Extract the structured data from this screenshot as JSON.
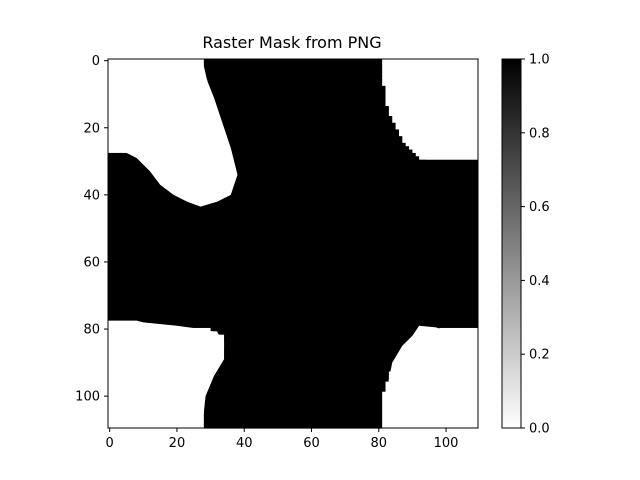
{
  "chart_data": {
    "type": "heatmap",
    "title": "Raster Mask from PNG",
    "xlabel": "",
    "ylabel": "",
    "shape": [
      110,
      110
    ],
    "xlim": [
      -0.5,
      109.5
    ],
    "ylim": [
      109.5,
      -0.5
    ],
    "x_ticks": [
      0,
      20,
      40,
      60,
      80,
      100
    ],
    "y_ticks": [
      0,
      20,
      40,
      60,
      80,
      100
    ],
    "colormap": "gray_r",
    "value_range": [
      0.0,
      1.0
    ],
    "background_value": 0.0,
    "mask_value": 1.0,
    "colorbar": {
      "ticks": [
        "0.0",
        "0.2",
        "0.4",
        "0.6",
        "0.8",
        "1.0"
      ],
      "tick_values": [
        0.0,
        0.2,
        0.4,
        0.6,
        0.8,
        1.0
      ],
      "low_color": "#ffffff",
      "high_color": "#000000"
    },
    "mask_rows_x_start_end": [
      [
        28,
        81
      ],
      [
        28,
        81
      ],
      [
        28,
        81
      ],
      [
        28,
        81
      ],
      [
        28,
        81
      ],
      [
        28,
        81
      ],
      [
        29,
        81
      ],
      [
        29,
        81
      ],
      [
        29,
        82
      ],
      [
        29,
        82
      ],
      [
        30,
        82
      ],
      [
        30,
        82
      ],
      [
        31,
        82
      ],
      [
        31,
        82
      ],
      [
        31,
        83
      ],
      [
        32,
        83
      ],
      [
        32,
        83
      ],
      [
        32,
        84
      ],
      [
        33,
        84
      ],
      [
        33,
        85
      ],
      [
        33,
        85
      ],
      [
        34,
        86
      ],
      [
        34,
        86
      ],
      [
        34,
        87
      ],
      [
        35,
        87
      ],
      [
        35,
        88
      ],
      [
        35,
        89
      ],
      [
        36,
        90
      ],
      [
        -0.5,
        91
      ],
      [
        -0.5,
        92
      ],
      [
        -0.5,
        109.5
      ],
      [
        -0.5,
        109.5
      ],
      [
        -0.5,
        109.5
      ],
      [
        -0.5,
        109.5
      ],
      [
        -0.5,
        109.5
      ],
      [
        -0.5,
        109.5
      ],
      [
        -0.5,
        109.5
      ],
      [
        -0.5,
        109.5
      ],
      [
        -0.5,
        109.5
      ],
      [
        -0.5,
        109.5
      ],
      [
        -0.5,
        109.5
      ],
      [
        -0.5,
        109.5
      ],
      [
        -0.5,
        109.5
      ],
      [
        -0.5,
        109.5
      ],
      [
        -0.5,
        109.5
      ],
      [
        -0.5,
        109.5
      ],
      [
        -0.5,
        109.5
      ],
      [
        -0.5,
        109.5
      ],
      [
        -0.5,
        109.5
      ],
      [
        -0.5,
        109.5
      ],
      [
        -0.5,
        109.5
      ],
      [
        -0.5,
        109.5
      ],
      [
        -0.5,
        109.5
      ],
      [
        -0.5,
        109.5
      ],
      [
        -0.5,
        109.5
      ],
      [
        -0.5,
        109.5
      ],
      [
        -0.5,
        109.5
      ],
      [
        -0.5,
        109.5
      ],
      [
        -0.5,
        109.5
      ],
      [
        -0.5,
        109.5
      ],
      [
        -0.5,
        109.5
      ],
      [
        -0.5,
        109.5
      ],
      [
        -0.5,
        109.5
      ],
      [
        -0.5,
        109.5
      ],
      [
        -0.5,
        109.5
      ],
      [
        -0.5,
        109.5
      ],
      [
        -0.5,
        109.5
      ],
      [
        -0.5,
        109.5
      ],
      [
        -0.5,
        109.5
      ],
      [
        -0.5,
        109.5
      ],
      [
        -0.5,
        109.5
      ],
      [
        -0.5,
        109.5
      ],
      [
        -0.5,
        109.5
      ],
      [
        -0.5,
        109.5
      ],
      [
        -0.5,
        109.5
      ],
      [
        -0.5,
        109.5
      ],
      [
        -0.5,
        109.5
      ],
      [
        -0.5,
        109.5
      ],
      [
        -0.5,
        109.5
      ],
      [
        -0.5,
        109.5
      ],
      [
        30,
        98
      ],
      [
        32,
        96
      ],
      [
        34,
        94
      ],
      [
        34,
        92
      ],
      [
        34,
        90
      ],
      [
        34,
        89
      ],
      [
        33,
        88
      ],
      [
        33,
        87
      ],
      [
        33,
        86
      ],
      [
        32,
        85
      ],
      [
        32,
        85
      ],
      [
        31,
        84
      ],
      [
        31,
        84
      ],
      [
        30,
        83
      ],
      [
        30,
        83
      ],
      [
        29,
        83
      ],
      [
        29,
        82
      ],
      [
        29,
        82
      ],
      [
        28,
        82
      ],
      [
        28,
        81
      ],
      [
        28,
        81
      ],
      [
        28,
        81
      ],
      [
        28,
        81
      ],
      [
        28,
        81
      ],
      [
        28,
        81
      ],
      [
        28,
        81
      ],
      [
        28,
        81
      ],
      [
        28,
        81
      ],
      [
        28,
        81
      ],
      [
        28,
        81
      ]
    ],
    "white_patches": [
      {
        "region": "top-left",
        "points": [
          [
            -0.5,
            26.5
          ],
          [
            3,
            26.5
          ],
          [
            8,
            29
          ],
          [
            12,
            33
          ],
          [
            15,
            37
          ],
          [
            19,
            40
          ],
          [
            23,
            42
          ],
          [
            27,
            43.5
          ],
          [
            32,
            42
          ],
          [
            36,
            40
          ],
          [
            38,
            34
          ],
          [
            36,
            26
          ],
          [
            33,
            17
          ],
          [
            31,
            11
          ],
          [
            29,
            6
          ],
          [
            27.5,
            -0.5
          ],
          [
            -0.5,
            -0.5
          ]
        ]
      },
      {
        "region": "top-right",
        "points": [
          [
            81.5,
            -0.5
          ],
          [
            82,
            6
          ],
          [
            83.5,
            12
          ],
          [
            86,
            17
          ],
          [
            89,
            21
          ],
          [
            92,
            25
          ],
          [
            94,
            29.5
          ],
          [
            109.5,
            29.5
          ],
          [
            109.5,
            -0.5
          ]
        ]
      },
      {
        "region": "bottom-left",
        "points": [
          [
            -0.5,
            77.5
          ],
          [
            8,
            77.5
          ],
          [
            10,
            78
          ],
          [
            20,
            79
          ],
          [
            27,
            80
          ],
          [
            32,
            81
          ],
          [
            34,
            84
          ],
          [
            34,
            89
          ],
          [
            31,
            94
          ],
          [
            28.5,
            100
          ],
          [
            27.5,
            109.5
          ],
          [
            -0.5,
            109.5
          ]
        ]
      },
      {
        "region": "bottom-right",
        "points": [
          [
            109.5,
            81.5
          ],
          [
            100,
            80.5
          ],
          [
            97,
            79.5
          ],
          [
            92,
            79
          ],
          [
            90,
            82
          ],
          [
            87,
            85
          ],
          [
            84,
            90
          ],
          [
            83,
            95
          ],
          [
            81.5,
            109.5
          ],
          [
            109.5,
            109.5
          ]
        ]
      }
    ]
  }
}
